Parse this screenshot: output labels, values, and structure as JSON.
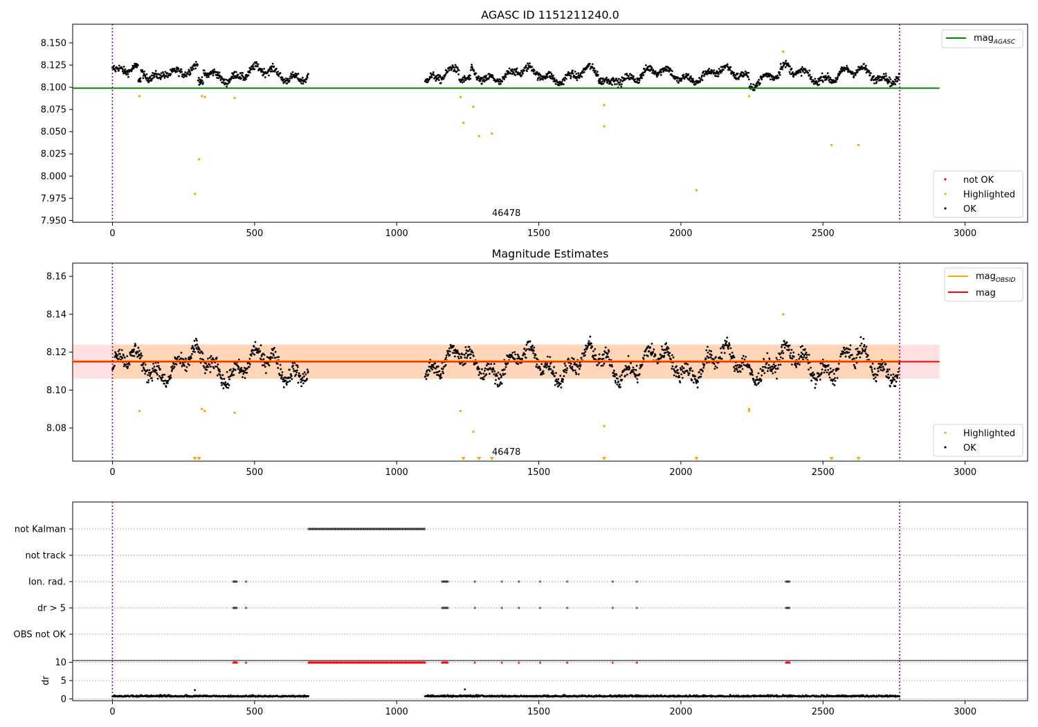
{
  "chart_data": [
    {
      "type": "scatter",
      "title": "AGASC ID 1151211240.0",
      "x_ticks": [
        0,
        500,
        1000,
        1500,
        2000,
        2500,
        3000
      ],
      "y_ticks": [
        "7.950",
        "7.975",
        "8.000",
        "8.025",
        "8.050",
        "8.075",
        "8.100",
        "8.125",
        "8.150"
      ],
      "xlim": [
        -140,
        3220
      ],
      "ylim": [
        7.948,
        8.171
      ],
      "annotation": "46478",
      "annotation_x": 1380,
      "vlines": [
        0,
        2770
      ],
      "hline": {
        "name": "mag",
        "name_sub": "AGASC",
        "y": 8.099,
        "x_range": [
          -140,
          2910
        ],
        "color": "#008000"
      },
      "legend_lines": [
        {
          "name": "mag",
          "sub": "AGASC",
          "color": "#008000"
        }
      ],
      "legend_points": [
        {
          "name": "not OK",
          "color": "#ff0000"
        },
        {
          "name": "Highlighted",
          "color": "#ffa500"
        },
        {
          "name": "OK",
          "color": "#000000"
        }
      ],
      "segments": [
        [
          0,
          690,
          8.115
        ],
        [
          1100,
          2770,
          8.114
        ]
      ],
      "bumps": [
        [
          0,
          8,
          8.125
        ],
        [
          90,
          100,
          8.097
        ],
        [
          170,
          230,
          8.121
        ],
        [
          300,
          320,
          8.094
        ],
        [
          1220,
          1260,
          8.1
        ],
        [
          1710,
          1760,
          8.099
        ],
        [
          2240,
          2260,
          8.09
        ],
        [
          2350,
          2380,
          8.128
        ]
      ],
      "noise": 0.007,
      "highlighted": [
        [
          95,
          8.09
        ],
        [
          290,
          7.98
        ],
        [
          305,
          8.019
        ],
        [
          315,
          8.09
        ],
        [
          325,
          8.089
        ],
        [
          430,
          8.088
        ],
        [
          1225,
          8.089
        ],
        [
          1235,
          8.06
        ],
        [
          1270,
          8.078
        ],
        [
          1290,
          8.045
        ],
        [
          1335,
          8.048
        ],
        [
          1730,
          8.08
        ],
        [
          1730,
          8.056
        ],
        [
          2055,
          7.984
        ],
        [
          2240,
          8.09
        ],
        [
          2360,
          8.14
        ],
        [
          2530,
          8.035
        ],
        [
          2625,
          8.035
        ]
      ]
    },
    {
      "type": "scatter",
      "title": "Magnitude Estimates",
      "x_ticks": [
        0,
        500,
        1000,
        1500,
        2000,
        2500,
        3000
      ],
      "y_ticks": [
        "8.08",
        "8.10",
        "8.12",
        "8.14",
        "8.16"
      ],
      "xlim": [
        -140,
        3220
      ],
      "ylim": [
        8.0625,
        8.167
      ],
      "annotation": "46478",
      "annotation_x": 1380,
      "vlines": [
        0,
        2770
      ],
      "band": {
        "y_low": 8.106,
        "y_high": 8.124,
        "x_range": [
          -140,
          2910
        ]
      },
      "mag_obsid_line": {
        "y": 8.1155,
        "x_range": [
          -140,
          2770
        ],
        "color": "#ffa500"
      },
      "mag_line": {
        "y": 8.115,
        "x_range": [
          -140,
          2910
        ],
        "color": "#ff0000"
      },
      "legend_lines": [
        {
          "name": "mag",
          "sub": "OBSID",
          "color": "#ffa500"
        },
        {
          "name": "mag",
          "sub": "",
          "color": "#ff0000"
        }
      ],
      "legend_points": [
        {
          "name": "Highlighted",
          "color": "#ffa500"
        },
        {
          "name": "OK",
          "color": "#000000"
        }
      ],
      "segments": [
        [
          0,
          690,
          8.113
        ],
        [
          1100,
          2770,
          8.114
        ]
      ],
      "noise": 0.007,
      "highlighted": [
        [
          95,
          8.089
        ],
        [
          315,
          8.09
        ],
        [
          325,
          8.089
        ],
        [
          430,
          8.088
        ],
        [
          1225,
          8.089
        ],
        [
          1270,
          8.078
        ],
        [
          1730,
          8.081
        ],
        [
          2240,
          8.09
        ],
        [
          2240,
          8.089
        ],
        [
          2360,
          8.14
        ]
      ],
      "below_range_markers": [
        290,
        305,
        1235,
        1290,
        1335,
        1730,
        2055,
        2530,
        2625
      ]
    },
    {
      "type": "scatter",
      "categories": [
        "not Kalman",
        "not track",
        "Ion. rad.",
        "dr > 5",
        "OBS not OK"
      ],
      "x_ticks": [
        0,
        500,
        1000,
        1500,
        2000,
        2500,
        3000
      ],
      "xlim": [
        -140,
        3220
      ],
      "vlines": [
        0,
        2770
      ],
      "flags": {
        "not Kalman": {
          "ranges": [
            [
              690,
              1100
            ]
          ],
          "points": []
        },
        "not track": {
          "ranges": [],
          "points": []
        },
        "Ion. rad.": {
          "ranges": [
            [
              425,
              440
            ],
            [
              1160,
              1180
            ],
            [
              2370,
              2385
            ]
          ],
          "points": [
            470,
            1275,
            1370,
            1430,
            1505,
            1600,
            1760,
            1845
          ]
        },
        "dr > 5": {
          "ranges": [
            [
              425,
              440
            ],
            [
              1160,
              1180
            ],
            [
              2370,
              2385
            ]
          ],
          "points": [
            470,
            1275,
            1370,
            1430,
            1505,
            1600,
            1760,
            1845
          ]
        },
        "OBS not OK": {
          "ranges": [],
          "points": []
        }
      }
    },
    {
      "type": "scatter",
      "ylabel": "dr",
      "y_ticks": [
        "0",
        "5",
        "10"
      ],
      "x_ticks": [
        0,
        500,
        1000,
        1500,
        2000,
        2500,
        3000
      ],
      "xlim": [
        -140,
        3220
      ],
      "ylim": [
        -0.5,
        10.5
      ],
      "vlines": [
        0,
        2770
      ],
      "segments": [
        [
          0,
          690
        ],
        [
          1100,
          2770
        ]
      ],
      "base": 0.6,
      "noise": 0.35,
      "capped_value": 10,
      "capped_ranges": [
        [
          425,
          440
        ],
        [
          690,
          1100
        ],
        [
          1160,
          1180
        ],
        [
          2370,
          2385
        ]
      ],
      "capped_points": [
        470,
        1275,
        1370,
        1430,
        1505,
        1600,
        1760,
        1845
      ],
      "outliers": [
        [
          290,
          2.4
        ],
        [
          1240,
          2.6
        ]
      ]
    }
  ]
}
